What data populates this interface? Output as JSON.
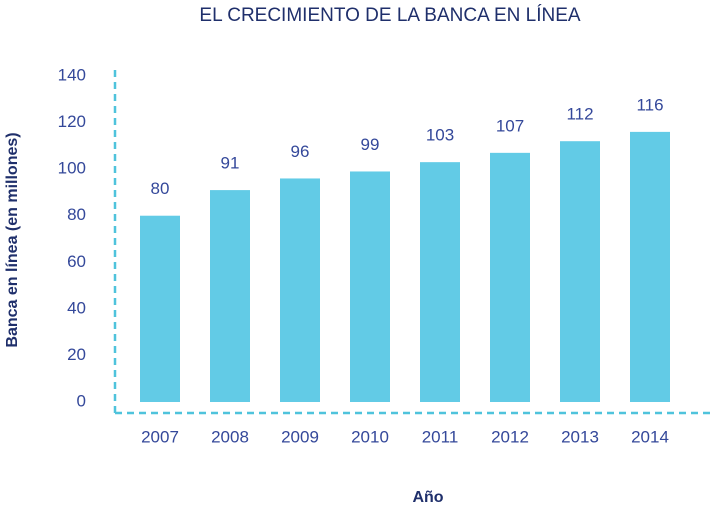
{
  "chart_data": {
    "type": "bar",
    "title": "EL CRECIMIENTO DE LA BANCA EN LÍNEA",
    "x_label": "Año",
    "y_label": "Banca en línea (en millones)",
    "categories": [
      "2007",
      "2008",
      "2009",
      "2010",
      "2011",
      "2012",
      "2013",
      "2014"
    ],
    "values": [
      80,
      91,
      96,
      99,
      103,
      107,
      112,
      116
    ],
    "color": "#62cbe6",
    "ylim": [
      0,
      140
    ],
    "yticks": [
      0,
      20,
      40,
      60,
      80,
      100,
      120,
      140
    ],
    "grid": false
  }
}
